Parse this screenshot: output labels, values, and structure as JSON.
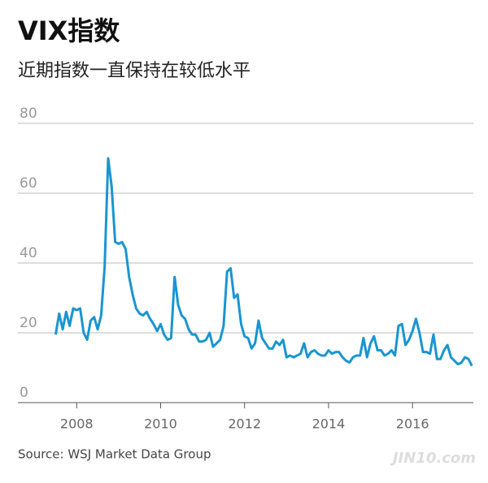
{
  "chart_data": {
    "type": "line",
    "title": "VIX指数",
    "subtitle": "近期指数一直保持在较低水平",
    "source": "Source: WSJ Market Data Group",
    "watermark": "JIN10.com",
    "color": "#1a95d0",
    "x": [
      2007.5,
      2007.583,
      2007.667,
      2007.75,
      2007.833,
      2007.917,
      2008,
      2008.083,
      2008.167,
      2008.25,
      2008.333,
      2008.417,
      2008.5,
      2008.583,
      2008.667,
      2008.75,
      2008.833,
      2008.917,
      2009,
      2009.083,
      2009.167,
      2009.25,
      2009.333,
      2009.417,
      2009.5,
      2009.583,
      2009.667,
      2009.75,
      2009.833,
      2009.917,
      2010,
      2010.083,
      2010.167,
      2010.25,
      2010.333,
      2010.417,
      2010.5,
      2010.583,
      2010.667,
      2010.75,
      2010.833,
      2010.917,
      2011,
      2011.083,
      2011.167,
      2011.25,
      2011.333,
      2011.417,
      2011.5,
      2011.583,
      2011.667,
      2011.75,
      2011.833,
      2011.917,
      2012,
      2012.083,
      2012.167,
      2012.25,
      2012.333,
      2012.417,
      2012.5,
      2012.583,
      2012.667,
      2012.75,
      2012.833,
      2012.917,
      2013,
      2013.083,
      2013.167,
      2013.25,
      2013.333,
      2013.417,
      2013.5,
      2013.583,
      2013.667,
      2013.75,
      2013.833,
      2013.917,
      2014,
      2014.083,
      2014.167,
      2014.25,
      2014.333,
      2014.417,
      2014.5,
      2014.583,
      2014.667,
      2014.75,
      2014.833,
      2014.917,
      2015,
      2015.083,
      2015.167,
      2015.25,
      2015.333,
      2015.417,
      2015.5,
      2015.583,
      2015.667,
      2015.75,
      2015.833,
      2015.917,
      2016,
      2016.083,
      2016.167,
      2016.25,
      2016.333,
      2016.417,
      2016.5,
      2016.583,
      2016.667,
      2016.75,
      2016.833,
      2016.917,
      2017,
      2017.083,
      2017.167,
      2017.25,
      2017.333,
      2017.417
    ],
    "values": [
      19.5,
      25.5,
      21,
      26,
      22,
      27,
      26.5,
      27,
      20,
      18,
      23.5,
      24.5,
      21,
      25,
      39,
      70,
      62,
      46,
      45.5,
      46,
      44,
      36,
      31,
      27,
      25.5,
      25,
      26,
      24,
      22.5,
      20.5,
      22.5,
      19.5,
      18,
      18.5,
      36,
      28,
      25,
      24,
      21,
      19.5,
      19.5,
      17.5,
      17.5,
      18,
      20,
      16,
      17,
      18,
      22,
      37.5,
      38.5,
      30,
      31,
      22.5,
      19,
      18.5,
      15.5,
      17,
      23.5,
      18.5,
      17,
      15.5,
      15.5,
      17.5,
      16.5,
      18,
      13,
      13.5,
      13,
      13.5,
      14,
      17,
      13,
      14.5,
      15,
      14,
      13.5,
      13.5,
      15,
      14,
      14.5,
      14.5,
      13,
      12,
      11.5,
      13,
      13.5,
      13.5,
      18.5,
      13,
      17,
      19,
      15,
      15,
      13.5,
      14,
      15,
      13.5,
      22,
      22.5,
      16.5,
      18,
      20.5,
      24,
      20,
      14.5,
      14.5,
      14,
      19.5,
      12.5,
      12.5,
      15,
      16.5,
      13,
      12,
      11,
      11.5,
      13,
      12.5,
      10.5
    ],
    "xlim": [
      2006.6,
      2017.45
    ],
    "xticks": [
      2008,
      2010,
      2012,
      2014,
      2016
    ],
    "ylim": [
      0,
      80
    ],
    "yticks": [
      0,
      20,
      40,
      60,
      80
    ],
    "grid": true
  }
}
